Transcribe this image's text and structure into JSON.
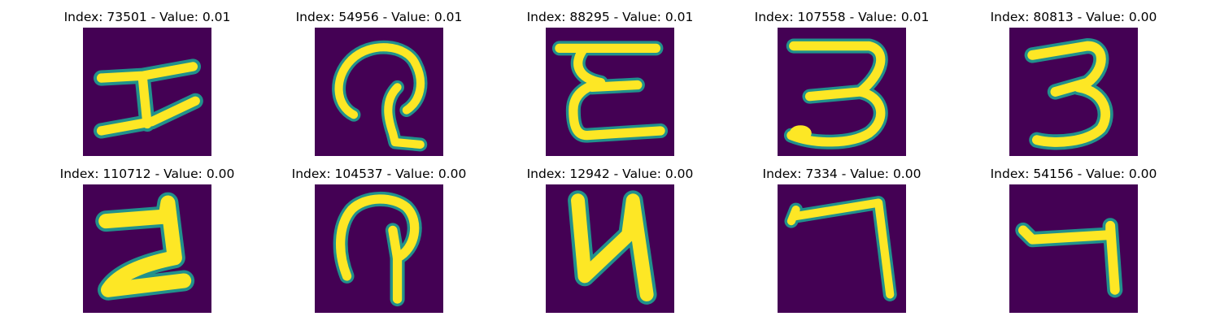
{
  "colors": {
    "background": "#440154",
    "edge": "#21918c",
    "mid": "#5ec962",
    "stroke": "#fde725"
  },
  "panels": [
    {
      "title": "Index: 73501 - Value: 0.01"
    },
    {
      "title": "Index: 54956 - Value: 0.01"
    },
    {
      "title": "Index: 88295 - Value: 0.01"
    },
    {
      "title": "Index: 107558 - Value: 0.01"
    },
    {
      "title": "Index: 80813 - Value: 0.00"
    },
    {
      "title": "Index: 110712 - Value: 0.00"
    },
    {
      "title": "Index: 104537 - Value: 0.00"
    },
    {
      "title": "Index: 12942 - Value: 0.00"
    },
    {
      "title": "Index: 7334 - Value: 0.00"
    },
    {
      "title": "Index: 54156 - Value: 0.00"
    }
  ]
}
